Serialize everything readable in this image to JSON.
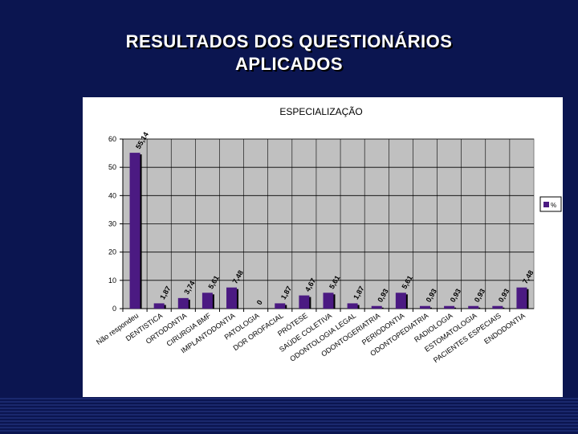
{
  "slide": {
    "title_line1": "RESULTADOS DOS QUESTIONÁRIOS",
    "title_line2": "APLICADOS"
  },
  "colors": {
    "background": "#0b1550",
    "plot_area": "#c0c0c0",
    "bar": "#4b1a82",
    "bar_shadow": "#000000"
  },
  "chart_data": {
    "type": "bar",
    "title": "ESPECIALIZAÇÃO",
    "xlabel": "",
    "ylabel": "",
    "ylim": [
      0,
      60
    ],
    "yticks": [
      "0",
      "10",
      "20",
      "30",
      "40",
      "50",
      "60"
    ],
    "grid": true,
    "legend_position": "right",
    "categories": [
      "Não respondeu",
      "DENTISTICA",
      "ORTODONTIA",
      "CIRURGIA BMF",
      "IMPLANTODONTIA",
      "PATOLOGIA",
      "DOR OROFACIAL",
      "PRÓTESE",
      "SAÚDE COLETIVA",
      "ODONTOLOGIA LEGAL",
      "ODONTOGERIATRIA",
      "PERIODONTIA",
      "ODONTOPEDIATRIA",
      "RADIOLOGIA",
      "ESTOMATOLOGIA",
      "PACIENTES ESPECIAIS",
      "ENDODONTIA"
    ],
    "series": [
      {
        "name": "%",
        "values": [
          55.14,
          1.87,
          3.74,
          5.61,
          7.48,
          0,
          1.87,
          4.67,
          5.61,
          1.87,
          0.93,
          5.61,
          0.93,
          0.93,
          0.93,
          0.93,
          7.48
        ],
        "labels": [
          "55,14",
          "1,87",
          "3,74",
          "5,61",
          "7,48",
          "0",
          "1,87",
          "4,67",
          "5,61",
          "1,87",
          "0,93",
          "5,61",
          "0,93",
          "0,93",
          "0,93",
          "0,93",
          "7,48"
        ]
      }
    ]
  }
}
